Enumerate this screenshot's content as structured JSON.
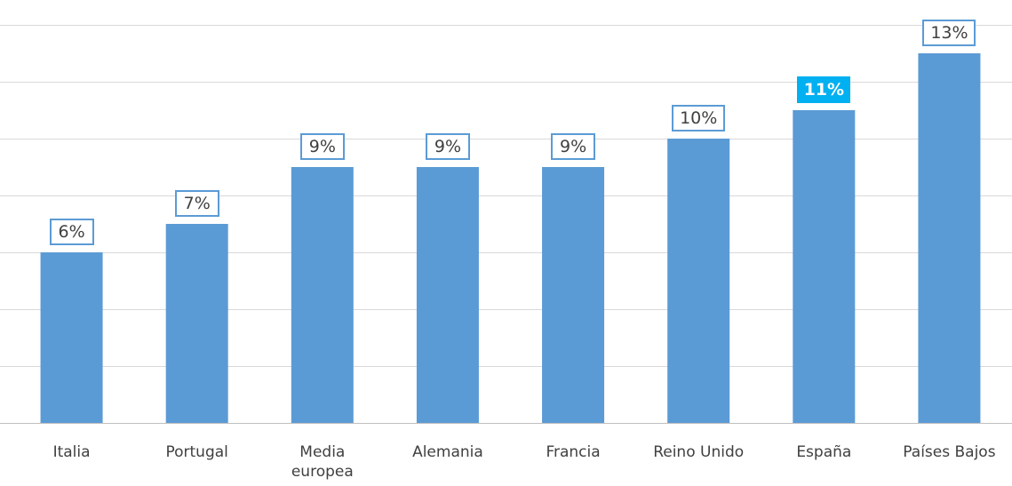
{
  "chart_data": {
    "type": "bar",
    "categories": [
      "Italia",
      "Portugal",
      "Media europea",
      "Alemania",
      "Francia",
      "Reino Unido",
      "España",
      "Países Bajos"
    ],
    "values": [
      6,
      7,
      9,
      9,
      9,
      10,
      11,
      13
    ],
    "value_labels": [
      "6%",
      "7%",
      "9%",
      "9%",
      "9%",
      "10%",
      "11%",
      "13%"
    ],
    "color": "#5b9bd5",
    "highlight": {
      "index": 6,
      "color": "#00b0f0"
    },
    "ylim": [
      0,
      14
    ],
    "yticks": [
      0,
      2,
      4,
      6,
      8,
      10,
      12,
      14
    ],
    "grid": true
  }
}
